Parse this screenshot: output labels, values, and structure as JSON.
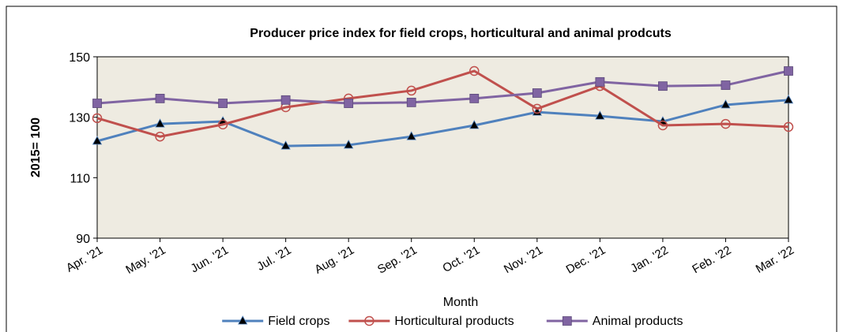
{
  "chart_data": {
    "type": "line",
    "title": "Producer price index for field crops, horticultural  and animal prodcuts",
    "x_label": "Month",
    "y_label": "2015= 100",
    "categories": [
      "Apr. '21",
      "May. '21",
      "Jun. '21",
      "Jul. '21",
      "Aug. '21",
      "Sep. '21",
      "Oct. '21",
      "Nov. '21",
      "Dec. '21",
      "Jan. '22",
      "Feb. '22",
      "Mar. '22"
    ],
    "series": [
      {
        "name": "Field crops",
        "color": "#4f81bd",
        "marker": "triangle",
        "values": [
          122.1,
          127.8,
          128.6,
          120.5,
          120.8,
          123.6,
          127.3,
          131.7,
          130.4,
          128.6,
          134.1,
          135.7
        ]
      },
      {
        "name": "Horticultural products",
        "color": "#c0504d",
        "marker": "circle",
        "values": [
          129.7,
          123.6,
          127.6,
          133.3,
          136.2,
          138.8,
          145.3,
          132.8,
          140.3,
          127.3,
          127.8,
          126.8
        ]
      },
      {
        "name": "Animal products",
        "color": "#8064a2",
        "marker": "square",
        "values": [
          134.6,
          136.2,
          134.6,
          135.7,
          134.6,
          134.9,
          136.2,
          138.0,
          141.7,
          140.3,
          140.6,
          145.3
        ]
      }
    ],
    "ylim": [
      90,
      150
    ],
    "yticks": [
      90,
      110,
      130,
      150
    ],
    "grid": false,
    "legend": "bottom"
  }
}
